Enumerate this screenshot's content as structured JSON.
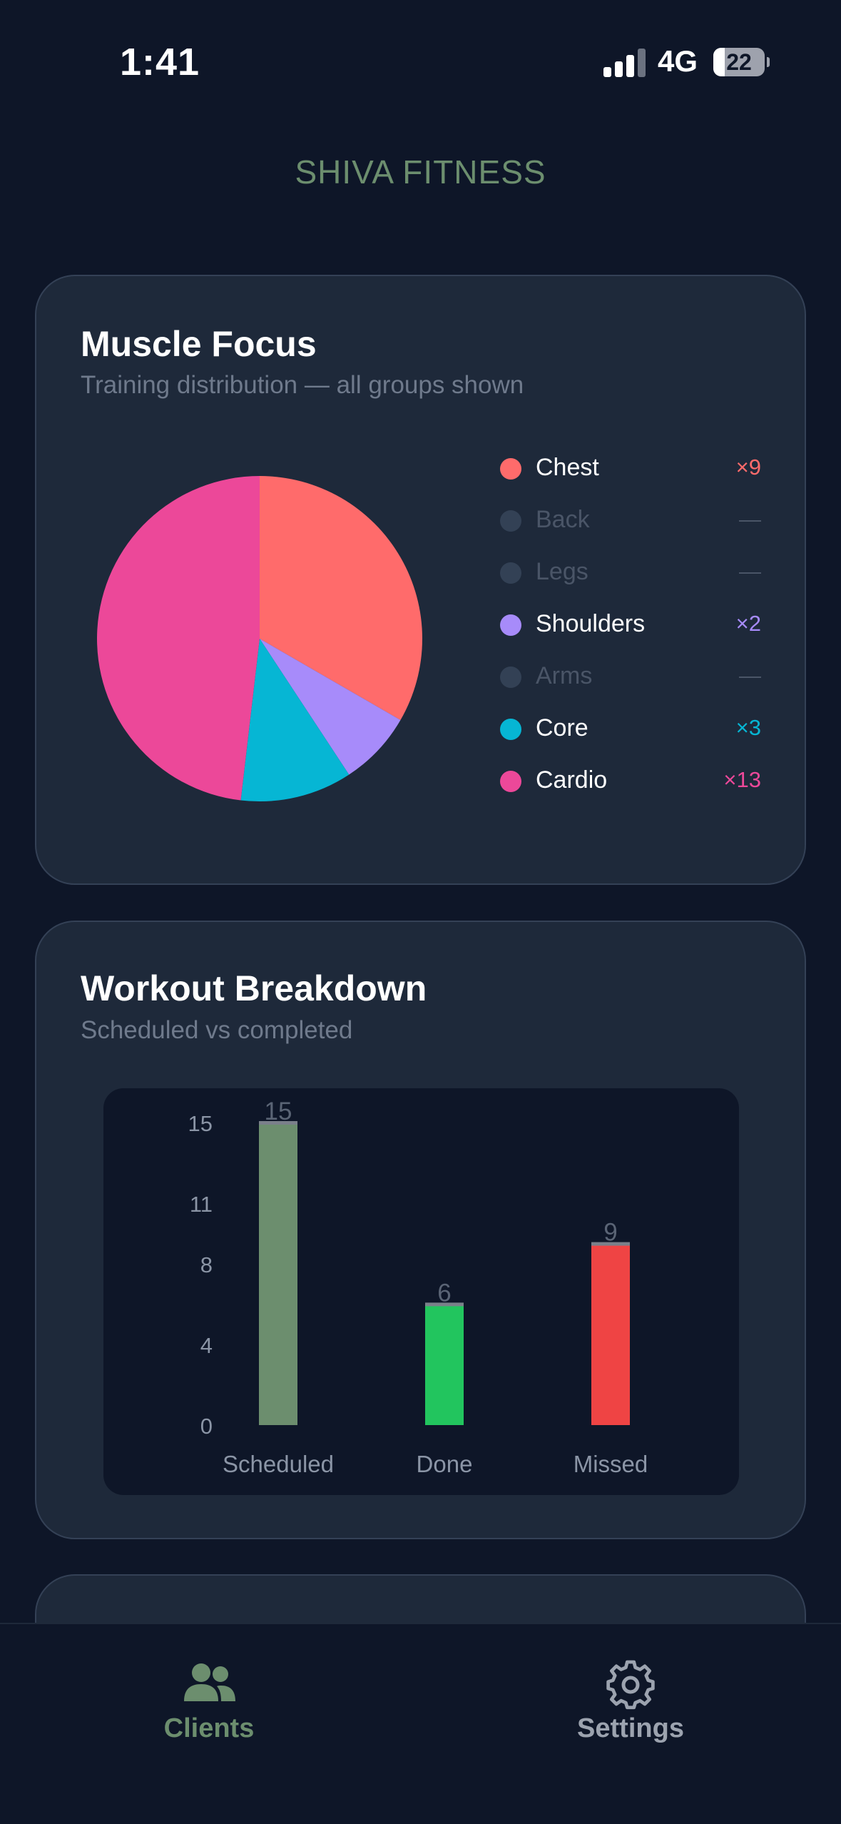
{
  "status_bar": {
    "time": "1:41",
    "network": "4G",
    "battery": "22",
    "battery_level": 0.22
  },
  "app": {
    "title": "SHIVA FITNESS"
  },
  "muscle_focus": {
    "title": "Muscle Focus",
    "subtitle": "Training distribution — all groups shown",
    "legend": [
      {
        "label": "Chest",
        "value": "×9",
        "count": 9,
        "color": "#ff6b6b",
        "active": true
      },
      {
        "label": "Back",
        "value": "—",
        "count": 0,
        "color": "#334155",
        "active": false
      },
      {
        "label": "Legs",
        "value": "—",
        "count": 0,
        "color": "#334155",
        "active": false
      },
      {
        "label": "Shoulders",
        "value": "×2",
        "count": 2,
        "color": "#a78bfa",
        "active": true
      },
      {
        "label": "Arms",
        "value": "—",
        "count": 0,
        "color": "#334155",
        "active": false
      },
      {
        "label": "Core",
        "value": "×3",
        "count": 3,
        "color": "#06b6d4",
        "active": true
      },
      {
        "label": "Cardio",
        "value": "×13",
        "count": 13,
        "color": "#ec4899",
        "active": true
      }
    ]
  },
  "workout_breakdown": {
    "title": "Workout Breakdown",
    "subtitle": "Scheduled vs completed"
  },
  "chart_data": [
    {
      "type": "pie",
      "title": "Muscle Focus",
      "subtitle": "Training distribution — all groups shown",
      "labels": [
        "Chest",
        "Back",
        "Legs",
        "Shoulders",
        "Arms",
        "Core",
        "Cardio"
      ],
      "values": [
        9,
        0,
        0,
        2,
        0,
        3,
        13
      ],
      "colors": [
        "#ff6b6b",
        "#334155",
        "#334155",
        "#a78bfa",
        "#334155",
        "#06b6d4",
        "#ec4899"
      ]
    },
    {
      "type": "bar",
      "title": "Workout Breakdown",
      "subtitle": "Scheduled vs completed",
      "categories": [
        "Scheduled",
        "Done",
        "Missed"
      ],
      "values": [
        15,
        6,
        9
      ],
      "value_labels": [
        "15",
        "6",
        "9"
      ],
      "colors": [
        "#6c8e6e",
        "#22c55e",
        "#ef4444"
      ],
      "yticks": [
        "0",
        "4",
        "8",
        "11",
        "15"
      ],
      "ylim": [
        0,
        15
      ],
      "xlabel": "",
      "ylabel": "",
      "grid": false
    }
  ],
  "tab_bar": {
    "tabs": [
      {
        "label": "Clients",
        "icon": "users-icon",
        "active": true,
        "color": "#6c8e6e"
      },
      {
        "label": "Settings",
        "icon": "gear-icon",
        "active": false,
        "color": "#9ca3af"
      }
    ]
  }
}
